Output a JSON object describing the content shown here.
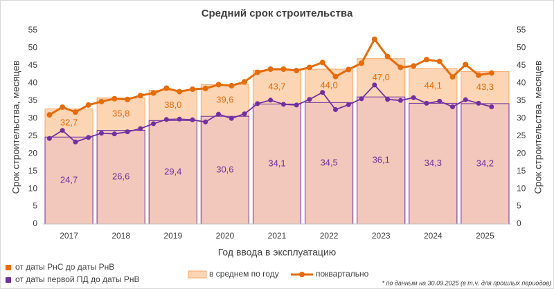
{
  "chart_data": {
    "type": "bar-line",
    "title": "Средний срок строительства",
    "xlabel": "Год ввода в эксплуатацию",
    "ylabel": "Срок строительства, месяцев",
    "y2label": "Срок строительства, месяцев",
    "categories": [
      "2017",
      "2018",
      "2019",
      "2020",
      "2021",
      "2022",
      "2023",
      "2024",
      "2025"
    ],
    "series": [
      {
        "name": "от даты РнС до даты РнВ",
        "color": "#e46c0a",
        "bar_fill": "#fcd5b4",
        "bar_stroke": "#f5a86a",
        "values": [
          32.7,
          35.8,
          38.0,
          39.6,
          43.7,
          44.0,
          47.0,
          44.1,
          43.3
        ],
        "value_labels": [
          "32,7",
          "35,8",
          "38,0",
          "39,6",
          "43,7",
          "44,0",
          "47,0",
          "44,1",
          "43,3"
        ],
        "quarterly_values": [
          31.0,
          33.2,
          31.8,
          33.8,
          34.8,
          35.6,
          35.4,
          36.5,
          37.2,
          38.6,
          37.6,
          38.3,
          38.5,
          39.6,
          39.3,
          40.4,
          43.1,
          44.0,
          44.0,
          43.6,
          44.5,
          45.9,
          41.9,
          43.9,
          45.7,
          52.5,
          47.6,
          44.5,
          44.9,
          46.7,
          46.2,
          41.8,
          45.3,
          42.3,
          42.9,
          null
        ]
      },
      {
        "name": "от даты первой ПД до даты РнВ",
        "color": "#7030a0",
        "bar_fill": "#f1c8bb",
        "bar_stroke": "#7030a0",
        "values": [
          24.7,
          26.6,
          29.4,
          30.6,
          34.1,
          34.5,
          36.1,
          34.3,
          34.2
        ],
        "value_labels": [
          "24,7",
          "26,6",
          "29,4",
          "30,6",
          "34,1",
          "34,5",
          "36,1",
          "34,3",
          "34,2"
        ],
        "quarterly_values": [
          24.3,
          26.6,
          23.3,
          24.6,
          25.8,
          25.6,
          26.2,
          27.1,
          28.5,
          29.7,
          29.8,
          29.6,
          29.0,
          31.2,
          30.0,
          31.3,
          34.2,
          35.2,
          34.0,
          33.8,
          35.4,
          37.4,
          32.5,
          33.9,
          35.6,
          39.5,
          35.4,
          35.1,
          35.9,
          34.3,
          34.9,
          33.3,
          35.3,
          34.3,
          33.3,
          null
        ]
      }
    ],
    "bar_legend": "в среднем по году",
    "line_legend": "поквартально",
    "footnote": "* по данным на 30.09.2025 (в т.ч. для прошлых периодов)",
    "ylim": [
      0,
      55
    ],
    "yticks": [
      0,
      5,
      10,
      15,
      20,
      25,
      30,
      35,
      40,
      45,
      50,
      55
    ],
    "y2lim": [
      0,
      55
    ],
    "y2ticks": [
      0,
      5,
      10,
      15,
      20,
      25,
      30,
      35,
      40,
      45,
      50,
      55
    ],
    "grid": false
  }
}
